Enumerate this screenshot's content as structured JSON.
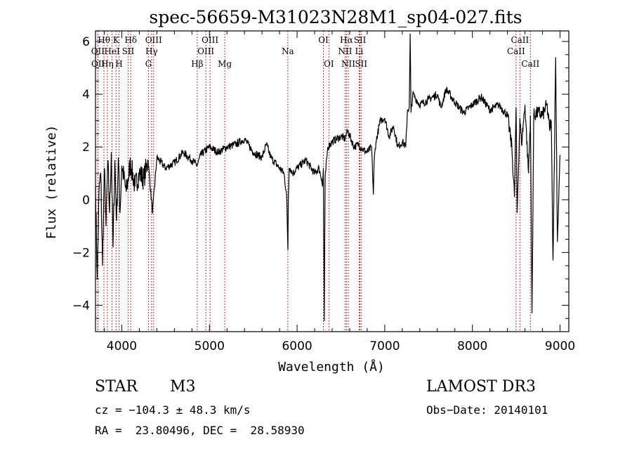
{
  "chart_data": {
    "type": "line",
    "title": "spec-56659-M31023N28M1_sp04-027.fits",
    "xlabel": "Wavelength (Å)",
    "ylabel": "Flux (relative)",
    "xlim": [
      3700,
      9100
    ],
    "ylim": [
      -5,
      6.4
    ],
    "xticks": [
      4000,
      5000,
      6000,
      7000,
      8000,
      9000
    ],
    "yticks": [
      -4,
      -2,
      0,
      2,
      4,
      6
    ],
    "grid": false,
    "spectrum": {
      "x": [
        3700,
        3720,
        3740,
        3760,
        3780,
        3800,
        3820,
        3840,
        3860,
        3880,
        3900,
        3920,
        3940,
        3960,
        3980,
        4000,
        4050,
        4100,
        4150,
        4200,
        4250,
        4300,
        4350,
        4400,
        4500,
        4600,
        4700,
        4800,
        4860,
        4900,
        5000,
        5100,
        5200,
        5300,
        5400,
        5500,
        5600,
        5650,
        5700,
        5800,
        5850,
        5880,
        5895,
        5900,
        5910,
        5920,
        5950,
        6000,
        6100,
        6200,
        6250,
        6280,
        6290,
        6300,
        6310,
        6320,
        6350,
        6400,
        6450,
        6500,
        6550,
        6562,
        6580,
        6650,
        6700,
        6750,
        6800,
        6850,
        6870,
        6880,
        6900,
        6950,
        7000,
        7050,
        7100,
        7150,
        7200,
        7240,
        7260,
        7280,
        7290,
        7300,
        7320,
        7400,
        7500,
        7600,
        7640,
        7660,
        7700,
        7800,
        7900,
        8000,
        8100,
        8200,
        8300,
        8400,
        8450,
        8480,
        8498,
        8510,
        8542,
        8560,
        8600,
        8640,
        8662,
        8680,
        8700,
        8750,
        8800,
        8850,
        8880,
        8900,
        8920,
        8950,
        8970,
        9000
      ],
      "y": [
        0.5,
        -3.0,
        0.3,
        1.0,
        -2.5,
        1.2,
        -1.0,
        1.5,
        -0.5,
        1.8,
        -1.8,
        1.5,
        -0.8,
        1.6,
        -0.5,
        1.3,
        0.3,
        1.4,
        0.5,
        1.0,
        0.8,
        1.5,
        -0.5,
        1.6,
        1.2,
        1.4,
        1.8,
        1.5,
        1.3,
        1.7,
        2.0,
        1.8,
        2.0,
        2.1,
        2.3,
        1.8,
        1.6,
        2.1,
        1.6,
        1.2,
        1.0,
        0.2,
        -1.9,
        0.0,
        1.2,
        1.2,
        1.0,
        1.2,
        1.5,
        1.0,
        1.2,
        0.8,
        0.5,
        1.2,
        -4.6,
        0.8,
        2.0,
        2.2,
        2.3,
        2.4,
        2.3,
        2.5,
        2.6,
        2.0,
        2.1,
        1.9,
        1.8,
        2.0,
        0.2,
        1.5,
        2.2,
        3.0,
        3.1,
        2.4,
        2.8,
        2.0,
        2.2,
        2.0,
        3.4,
        3.5,
        6.3,
        3.3,
        4.0,
        3.6,
        3.8,
        4.0,
        3.5,
        3.7,
        4.2,
        3.7,
        3.3,
        3.6,
        3.9,
        3.4,
        3.6,
        3.2,
        2.0,
        0.1,
        3.5,
        -0.5,
        3.1,
        2.1,
        3.6,
        1.0,
        3.2,
        -4.3,
        3.2,
        3.3,
        3.2,
        3.6,
        2.7,
        3.0,
        -2.3,
        5.4,
        -1.6,
        1.7
      ]
    },
    "lines": [
      {
        "label": "Hθ",
        "wl": 3797,
        "row": 1
      },
      {
        "label": "OII",
        "wl": 3727,
        "row": 2
      },
      {
        "label": "OII",
        "wl": 3729,
        "row": 3
      },
      {
        "label": "K",
        "wl": 3934,
        "row": 1
      },
      {
        "label": "HeI",
        "wl": 3889,
        "row": 2
      },
      {
        "label": "Hη",
        "wl": 3835,
        "row": 3
      },
      {
        "label": "Hδ",
        "wl": 4102,
        "row": 1
      },
      {
        "label": "SII",
        "wl": 4072,
        "row": 2
      },
      {
        "label": "H",
        "wl": 3968,
        "row": 3
      },
      {
        "label": "OIII",
        "wl": 4363,
        "row": 1
      },
      {
        "label": "Hγ",
        "wl": 4340,
        "row": 2
      },
      {
        "label": "G",
        "wl": 4304,
        "row": 3
      },
      {
        "label": "OIII",
        "wl": 5007,
        "row": 1
      },
      {
        "label": "OIII",
        "wl": 4959,
        "row": 2
      },
      {
        "label": "Hβ",
        "wl": 4861,
        "row": 3
      },
      {
        "label": "Mg",
        "wl": 5175,
        "row": 3
      },
      {
        "label": "Na",
        "wl": 5894,
        "row": 2
      },
      {
        "label": "OI",
        "wl": 6300,
        "row": 1
      },
      {
        "label": "OI",
        "wl": 6363,
        "row": 3
      },
      {
        "label": "Hα",
        "wl": 6563,
        "row": 1
      },
      {
        "label": "NII",
        "wl": 6548,
        "row": 2
      },
      {
        "label": "NII",
        "wl": 6584,
        "row": 3
      },
      {
        "label": "SII",
        "wl": 6717,
        "row": 1
      },
      {
        "label": "Li",
        "wl": 6708,
        "row": 2
      },
      {
        "label": "SII",
        "wl": 6731,
        "row": 3
      },
      {
        "label": "CaII",
        "wl": 8542,
        "row": 1
      },
      {
        "label": "CaII",
        "wl": 8498,
        "row": 2
      },
      {
        "label": "CaII",
        "wl": 8662,
        "row": 3
      }
    ]
  },
  "info": {
    "object_class": "STAR",
    "subclass": "M3",
    "survey": "LAMOST DR3",
    "cz": "cz = −104.3 ± 48.3 km/s",
    "obs_date": "Obs−Date: 20140101",
    "coords": "RA =  23.80496, DEC =  28.58930"
  },
  "colors": {
    "spectrum": "#000000",
    "lines": "#c03030",
    "axes": "#000000"
  }
}
